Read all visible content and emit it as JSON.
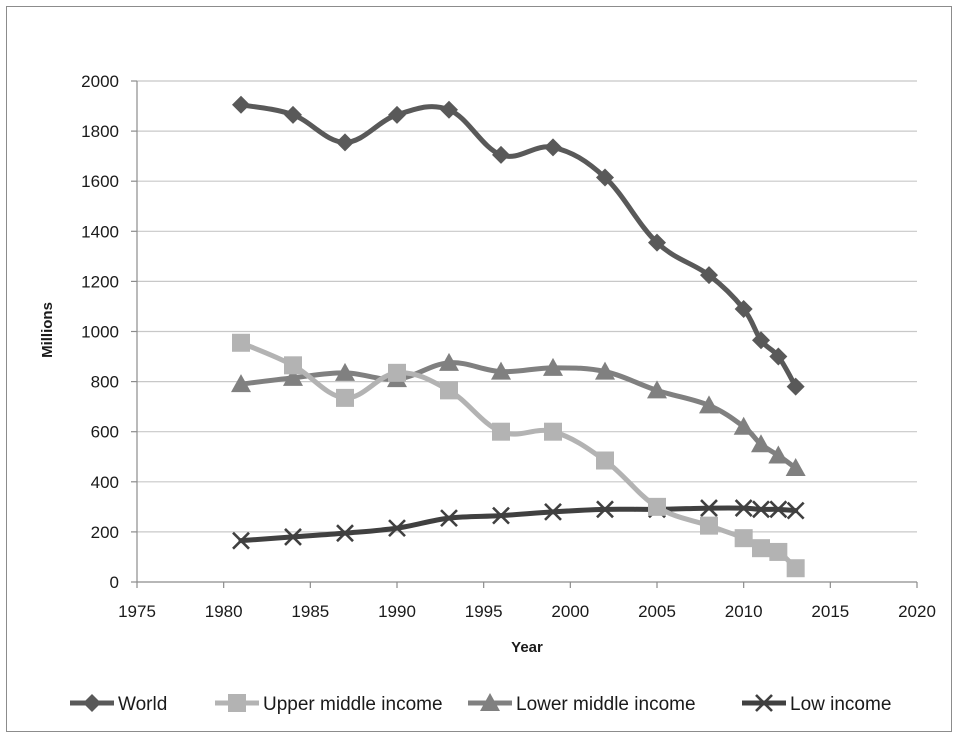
{
  "chart_data": {
    "type": "line",
    "title": "",
    "xlabel": "Year",
    "ylabel": "Millions",
    "xlim": [
      1975,
      2020
    ],
    "ylim": [
      0,
      2000
    ],
    "xticks": [
      1975,
      1980,
      1985,
      1990,
      1995,
      2000,
      2005,
      2010,
      2015,
      2020
    ],
    "yticks": [
      0,
      200,
      400,
      600,
      800,
      1000,
      1200,
      1400,
      1600,
      1800,
      2000
    ],
    "grid": "horizontal",
    "legend_position": "bottom",
    "x": [
      1981,
      1984,
      1987,
      1990,
      1993,
      1996,
      1999,
      2002,
      2005,
      2008,
      2010,
      2011,
      2012,
      2013
    ],
    "series": [
      {
        "name": "World",
        "marker": "diamond",
        "color": "#595959",
        "values": [
          1905,
          1865,
          1755,
          1865,
          1885,
          1705,
          1735,
          1615,
          1355,
          1225,
          1090,
          965,
          900,
          780
        ]
      },
      {
        "name": "Upper middle income",
        "marker": "square",
        "color": "#b3b3b3",
        "values": [
          955,
          865,
          735,
          835,
          765,
          600,
          600,
          485,
          300,
          225,
          175,
          135,
          120,
          55
        ]
      },
      {
        "name": "Lower middle income",
        "marker": "triangle",
        "color": "#808080",
        "values": [
          790,
          815,
          835,
          810,
          875,
          840,
          855,
          840,
          765,
          705,
          620,
          550,
          505,
          455
        ]
      },
      {
        "name": "Low income",
        "marker": "x",
        "color": "#404040",
        "values": [
          165,
          180,
          195,
          215,
          255,
          265,
          280,
          290,
          290,
          295,
          295,
          290,
          290,
          285
        ]
      }
    ]
  }
}
